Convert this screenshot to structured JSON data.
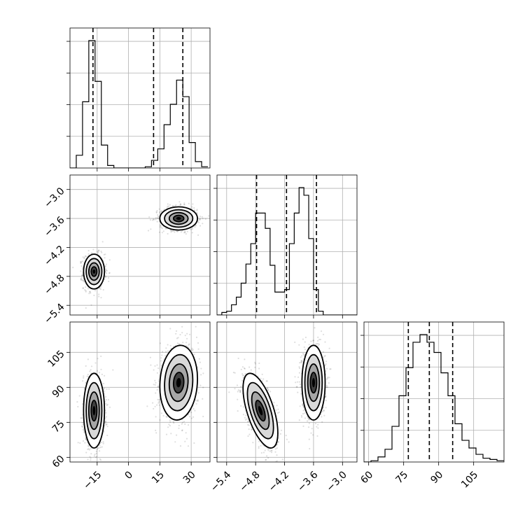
{
  "chart_data": {
    "type": "corner",
    "parameters": [
      {
        "ticks": [
          -15,
          0,
          15,
          30
        ],
        "tick_labels": [
          "−15",
          "0",
          "15",
          "30"
        ],
        "range": [
          -28,
          39
        ]
      },
      {
        "ticks": [
          -5.4,
          -4.8,
          -4.2,
          -3.6,
          -3.0
        ],
        "tick_labels": [
          "−5.4",
          "−4.8",
          "−4.2",
          "−3.6",
          "−3.0"
        ],
        "range": [
          -5.6,
          -2.7
        ]
      },
      {
        "ticks": [
          60,
          75,
          90,
          105
        ],
        "tick_labels": [
          "60",
          "75",
          "90",
          "105"
        ],
        "range": [
          58,
          118
        ]
      }
    ],
    "histograms": [
      {
        "bin_edges": [
          -28,
          -25,
          -22,
          -19,
          -16,
          -13,
          -10,
          -7,
          -4,
          -1,
          2,
          5,
          8,
          11,
          14,
          17,
          20,
          23,
          26,
          29,
          32,
          35,
          38
        ],
        "counts": [
          0,
          0.1,
          0.52,
          1.0,
          0.68,
          0.18,
          0.02,
          0,
          0,
          0,
          0,
          0,
          0.01,
          0.06,
          0.15,
          0.34,
          0.5,
          0.69,
          0.56,
          0.2,
          0.05,
          0.01
        ],
        "quantiles": [
          -17,
          12,
          26
        ]
      },
      {
        "bin_edges": [
          -5.6,
          -5.5,
          -5.4,
          -5.3,
          -5.2,
          -5.1,
          -5.0,
          -4.9,
          -4.8,
          -4.7,
          -4.6,
          -4.5,
          -4.4,
          -4.3,
          -4.2,
          -4.1,
          -4.0,
          -3.9,
          -3.8,
          -3.7,
          -3.6,
          -3.5,
          -3.4,
          -3.3,
          -3.2,
          -3.1,
          -3.0,
          -2.9,
          -2.8,
          -2.7
        ],
        "counts": [
          0,
          0.02,
          0.03,
          0.08,
          0.14,
          0.25,
          0.4,
          0.56,
          0.8,
          0.8,
          0.68,
          0.39,
          0.18,
          0.18,
          0.2,
          0.56,
          0.8,
          1.0,
          0.94,
          0.6,
          0.2,
          0.03,
          0,
          0,
          0,
          0,
          0,
          0,
          0
        ],
        "quantiles": [
          -4.78,
          -4.16,
          -3.54
        ]
      },
      {
        "bin_edges": [
          58,
          61,
          64,
          67,
          70,
          73,
          76,
          79,
          82,
          85,
          88,
          91,
          94,
          97,
          100,
          103,
          106,
          109,
          112,
          115,
          118
        ],
        "counts": [
          0,
          0.01,
          0.04,
          0.1,
          0.28,
          0.52,
          0.74,
          0.94,
          1.0,
          0.94,
          0.86,
          0.7,
          0.52,
          0.3,
          0.17,
          0.11,
          0.06,
          0.03,
          0.02,
          0.01
        ],
        "quantiles": [
          77,
          86,
          96
        ]
      }
    ],
    "clusters": {
      "p0_p1": [
        {
          "center": [
            -16.5,
            -4.7
          ],
          "sd": [
            2.5,
            0.18
          ],
          "corr": 0,
          "n": 900
        },
        {
          "center": [
            24,
            -3.6
          ],
          "sd": [
            4.5,
            0.12
          ],
          "corr": 0,
          "n": 900
        }
      ],
      "p0_p2": [
        {
          "center": [
            -16.5,
            80
          ],
          "sd": [
            2.5,
            8
          ],
          "corr": 0,
          "n": 900
        },
        {
          "center": [
            24,
            92
          ],
          "sd": [
            4.5,
            8
          ],
          "corr": 0.1,
          "n": 900
        }
      ],
      "p1_p2": [
        {
          "center": [
            -4.7,
            80
          ],
          "sd": [
            0.18,
            8
          ],
          "corr": -0.6,
          "n": 900
        },
        {
          "center": [
            -3.6,
            92
          ],
          "sd": [
            0.12,
            8
          ],
          "corr": 0,
          "n": 900
        }
      ]
    }
  }
}
